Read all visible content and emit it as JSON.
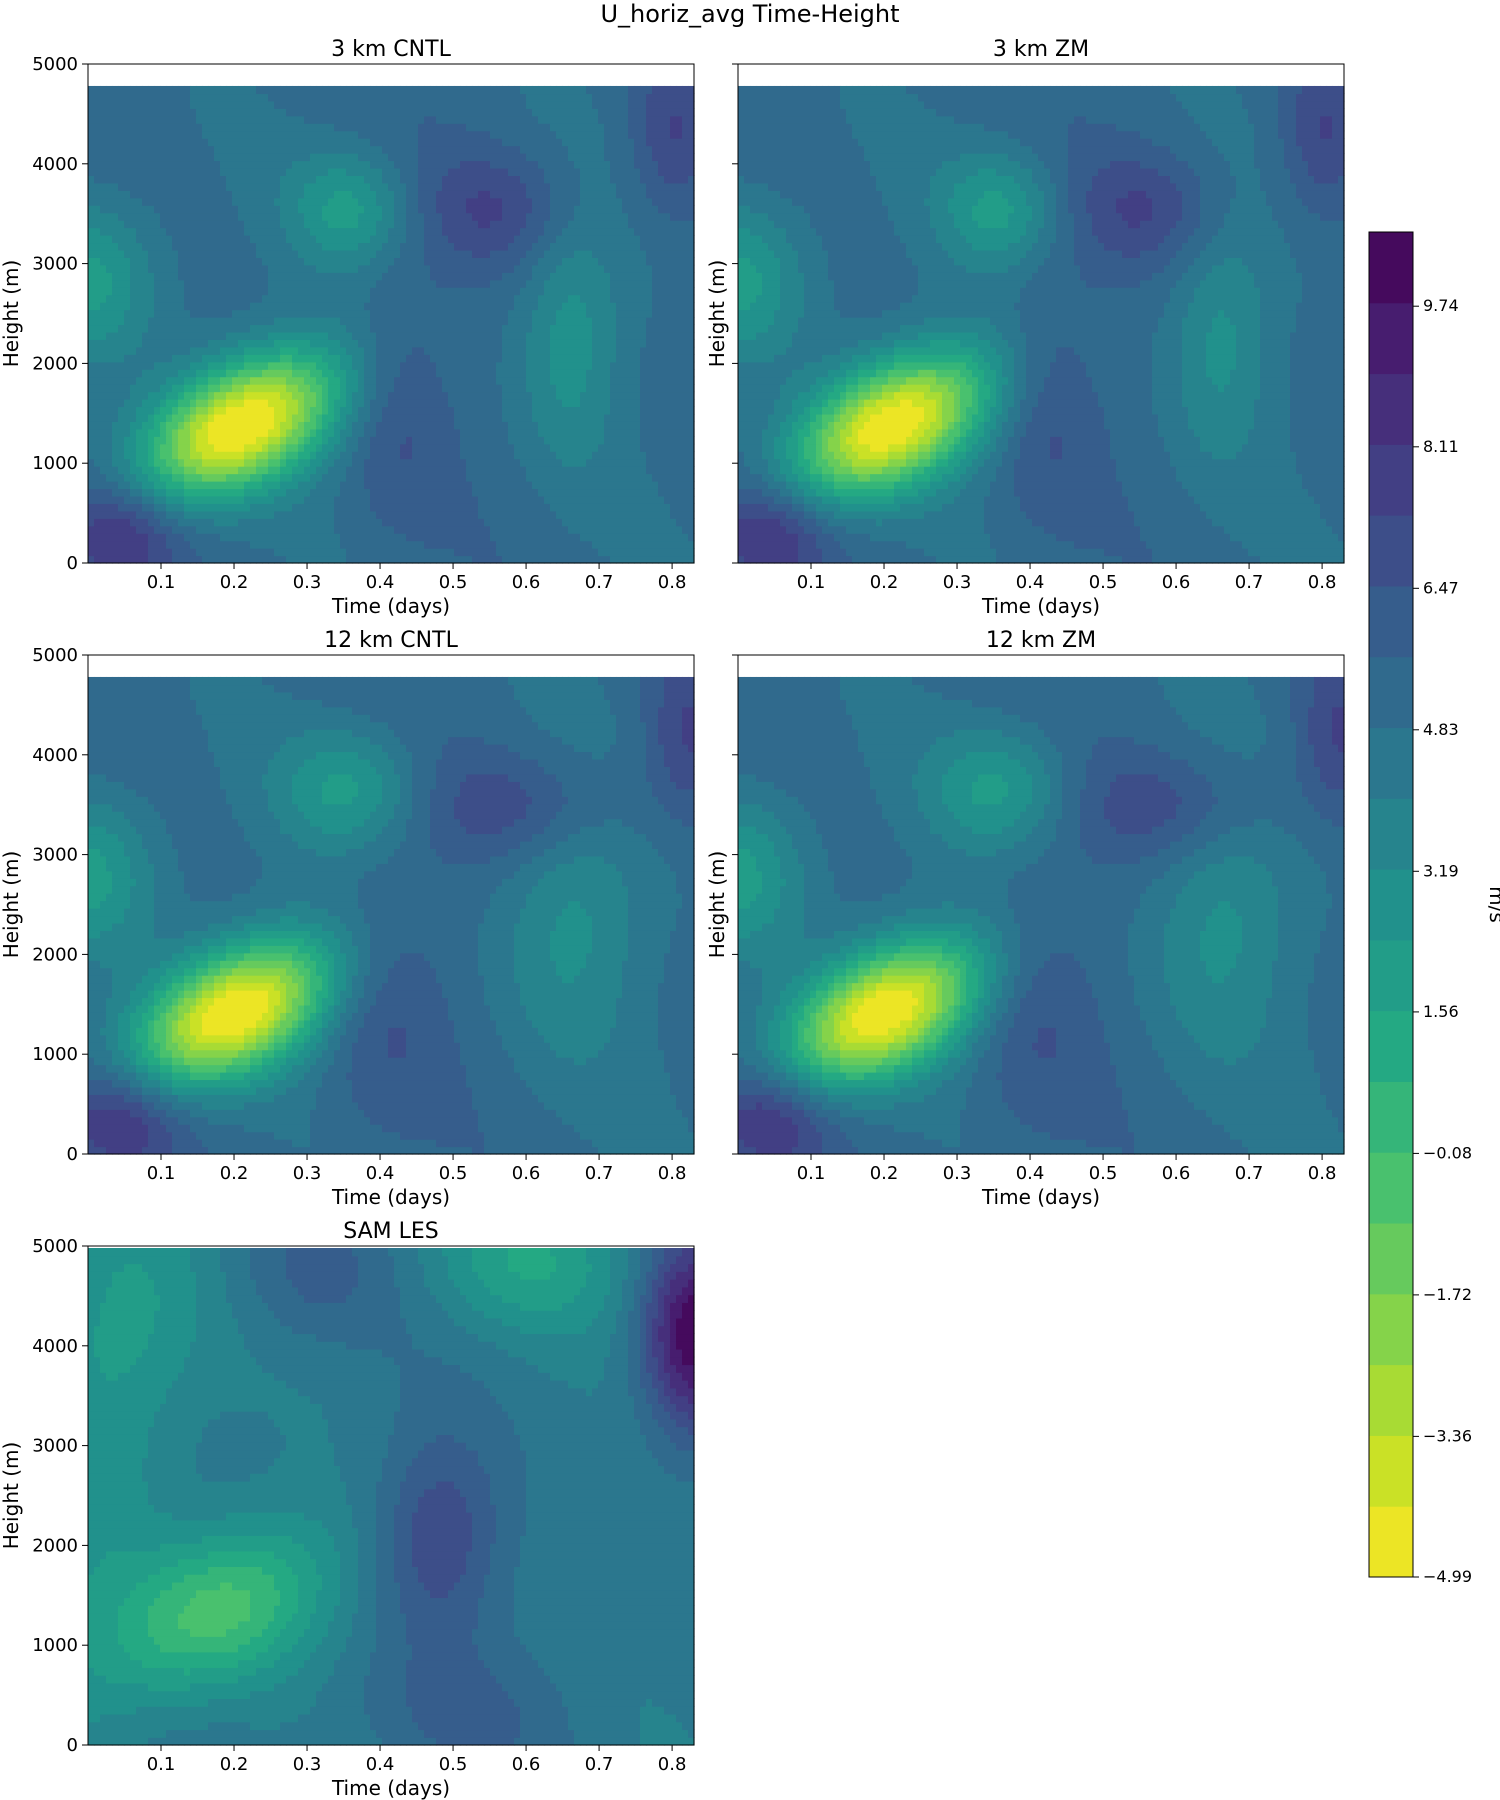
{
  "figure": {
    "title": "U_horiz_avg Time-Height"
  },
  "colormap": {
    "name": "viridis_r",
    "stops": [
      "#440154",
      "#482576",
      "#414487",
      "#35608d",
      "#2a788e",
      "#21918c",
      "#22a884",
      "#43bf71",
      "#7ad151",
      "#bddf26",
      "#fde725"
    ]
  },
  "chart_data": [
    {
      "type": "heatmap",
      "title": "3 km CNTL",
      "xlabel": "Time (days)",
      "ylabel": "Height (m)",
      "xticks": [
        "0.1",
        "0.2",
        "0.3",
        "0.4",
        "0.5",
        "0.6",
        "0.7",
        "0.8"
      ],
      "yticks": [
        "0",
        "1000",
        "2000",
        "3000",
        "4000",
        "5000"
      ],
      "xlim": [
        0.0,
        0.83
      ],
      "ylim": [
        0,
        5000
      ],
      "data_top": 4780,
      "field": {
        "background": 5.2,
        "features": [
          {
            "kind": "min",
            "t": 0.21,
            "z": 1380,
            "st": 0.085,
            "sz": 520,
            "amp": -10.4,
            "tilt": 0.45
          },
          {
            "kind": "min",
            "t": 0.36,
            "z": 3550,
            "st": 0.06,
            "sz": 420,
            "amp": -3.0
          },
          {
            "kind": "min",
            "t": 0.0,
            "z": 2850,
            "st": 0.07,
            "sz": 600,
            "amp": -3.2
          },
          {
            "kind": "min",
            "t": 0.66,
            "z": 2250,
            "st": 0.05,
            "sz": 900,
            "amp": -2.4
          },
          {
            "kind": "max",
            "t": 0.04,
            "z": 300,
            "st": 0.06,
            "sz": 380,
            "amp": 3.2
          },
          {
            "kind": "max",
            "t": 0.56,
            "z": 3560,
            "st": 0.08,
            "sz": 420,
            "amp": 2.0
          },
          {
            "kind": "max",
            "t": 0.42,
            "z": 1600,
            "st": 0.05,
            "sz": 900,
            "amp": 1.4
          },
          {
            "kind": "max",
            "t": 0.8,
            "z": 4300,
            "st": 0.04,
            "sz": 600,
            "amp": 2.0
          }
        ]
      }
    },
    {
      "type": "heatmap",
      "title": "3 km ZM",
      "xlabel": "Time (days)",
      "ylabel": "Height (m)",
      "xticks": [
        "0.1",
        "0.2",
        "0.3",
        "0.4",
        "0.5",
        "0.6",
        "0.7",
        "0.8"
      ],
      "yticks": [
        "0",
        "1000",
        "2000",
        "3000",
        "4000",
        "5000"
      ],
      "xlim": [
        0.0,
        0.83
      ],
      "ylim": [
        0,
        5000
      ],
      "data_top": 4780,
      "field": {
        "background": 5.2,
        "features": [
          {
            "kind": "min",
            "t": 0.21,
            "z": 1380,
            "st": 0.085,
            "sz": 520,
            "amp": -10.2,
            "tilt": 0.45
          },
          {
            "kind": "min",
            "t": 0.36,
            "z": 3550,
            "st": 0.06,
            "sz": 420,
            "amp": -3.0
          },
          {
            "kind": "min",
            "t": 0.0,
            "z": 2850,
            "st": 0.07,
            "sz": 600,
            "amp": -3.2
          },
          {
            "kind": "min",
            "t": 0.66,
            "z": 2250,
            "st": 0.05,
            "sz": 900,
            "amp": -2.2
          },
          {
            "kind": "max",
            "t": 0.04,
            "z": 300,
            "st": 0.06,
            "sz": 380,
            "amp": 3.2
          },
          {
            "kind": "max",
            "t": 0.56,
            "z": 3560,
            "st": 0.08,
            "sz": 420,
            "amp": 2.0
          },
          {
            "kind": "max",
            "t": 0.42,
            "z": 1600,
            "st": 0.05,
            "sz": 900,
            "amp": 1.4
          },
          {
            "kind": "max",
            "t": 0.8,
            "z": 4300,
            "st": 0.04,
            "sz": 600,
            "amp": 2.0
          }
        ]
      }
    },
    {
      "type": "heatmap",
      "title": "12 km CNTL",
      "xlabel": "Time (days)",
      "ylabel": "Height (m)",
      "xticks": [
        "0.1",
        "0.2",
        "0.3",
        "0.4",
        "0.5",
        "0.6",
        "0.7",
        "0.8"
      ],
      "yticks": [
        "0",
        "1000",
        "2000",
        "3000",
        "4000",
        "5000"
      ],
      "xlim": [
        0.0,
        0.83
      ],
      "ylim": [
        0,
        5000
      ],
      "data_top": 4780,
      "field": {
        "background": 5.2,
        "features": [
          {
            "kind": "min",
            "t": 0.2,
            "z": 1420,
            "st": 0.085,
            "sz": 520,
            "amp": -10.4,
            "tilt": 0.45
          },
          {
            "kind": "min",
            "t": 0.36,
            "z": 3650,
            "st": 0.07,
            "sz": 450,
            "amp": -3.0
          },
          {
            "kind": "min",
            "t": 0.0,
            "z": 2800,
            "st": 0.07,
            "sz": 600,
            "amp": -3.2
          },
          {
            "kind": "min",
            "t": 0.66,
            "z": 2300,
            "st": 0.07,
            "sz": 1000,
            "amp": -2.2
          },
          {
            "kind": "max",
            "t": 0.04,
            "z": 350,
            "st": 0.06,
            "sz": 380,
            "amp": 3.2
          },
          {
            "kind": "max",
            "t": 0.6,
            "z": 3500,
            "st": 0.1,
            "sz": 400,
            "amp": 2.0
          },
          {
            "kind": "max",
            "t": 0.4,
            "z": 1500,
            "st": 0.06,
            "sz": 1000,
            "amp": 1.4
          },
          {
            "kind": "max",
            "t": 0.82,
            "z": 4200,
            "st": 0.04,
            "sz": 600,
            "amp": 2.0
          }
        ]
      }
    },
    {
      "type": "heatmap",
      "title": "12 km ZM",
      "xlabel": "Time (days)",
      "ylabel": "Height (m)",
      "xticks": [
        "0.1",
        "0.2",
        "0.3",
        "0.4",
        "0.5",
        "0.6",
        "0.7",
        "0.8"
      ],
      "yticks": [
        "0",
        "1000",
        "2000",
        "3000",
        "4000",
        "5000"
      ],
      "xlim": [
        0.0,
        0.83
      ],
      "ylim": [
        0,
        5000
      ],
      "data_top": 4780,
      "field": {
        "background": 5.2,
        "features": [
          {
            "kind": "min",
            "t": 0.2,
            "z": 1420,
            "st": 0.085,
            "sz": 520,
            "amp": -10.2,
            "tilt": 0.45
          },
          {
            "kind": "min",
            "t": 0.36,
            "z": 3650,
            "st": 0.07,
            "sz": 450,
            "amp": -3.0
          },
          {
            "kind": "min",
            "t": 0.0,
            "z": 2800,
            "st": 0.07,
            "sz": 600,
            "amp": -3.2
          },
          {
            "kind": "min",
            "t": 0.66,
            "z": 2300,
            "st": 0.07,
            "sz": 1000,
            "amp": -2.2
          },
          {
            "kind": "max",
            "t": 0.04,
            "z": 350,
            "st": 0.06,
            "sz": 380,
            "amp": 3.2
          },
          {
            "kind": "max",
            "t": 0.6,
            "z": 3500,
            "st": 0.1,
            "sz": 400,
            "amp": 2.0
          },
          {
            "kind": "max",
            "t": 0.4,
            "z": 1500,
            "st": 0.06,
            "sz": 1000,
            "amp": 1.4
          },
          {
            "kind": "max",
            "t": 0.82,
            "z": 4200,
            "st": 0.04,
            "sz": 600,
            "amp": 2.0
          }
        ]
      }
    },
    {
      "type": "heatmap",
      "title": "SAM LES",
      "xlabel": "Time (days)",
      "ylabel": "Height (m)",
      "xticks": [
        "0.1",
        "0.2",
        "0.3",
        "0.4",
        "0.5",
        "0.6",
        "0.7",
        "0.8"
      ],
      "yticks": [
        "0",
        "1000",
        "2000",
        "3000",
        "4000",
        "5000"
      ],
      "xlim": [
        0.0,
        0.83
      ],
      "ylim": [
        0,
        5000
      ],
      "data_top": 4980,
      "field": {
        "background": 4.4,
        "features": [
          {
            "kind": "min",
            "t": 0.18,
            "z": 1350,
            "st": 0.1,
            "sz": 600,
            "amp": -4.6,
            "tilt": 0.35
          },
          {
            "kind": "min",
            "t": 0.05,
            "z": 4300,
            "st": 0.08,
            "sz": 900,
            "amp": -2.2
          },
          {
            "kind": "min",
            "t": 0.0,
            "z": 2000,
            "st": 0.08,
            "sz": 1500,
            "amp": -1.6
          },
          {
            "kind": "min",
            "t": 0.6,
            "z": 4850,
            "st": 0.1,
            "sz": 500,
            "amp": -2.6
          },
          {
            "kind": "max",
            "t": 0.48,
            "z": 2100,
            "st": 0.06,
            "sz": 700,
            "amp": 2.8
          },
          {
            "kind": "max",
            "t": 0.83,
            "z": 4100,
            "st": 0.05,
            "sz": 700,
            "amp": 6.0
          },
          {
            "kind": "max",
            "t": 0.3,
            "z": 4700,
            "st": 0.08,
            "sz": 500,
            "amp": 1.6
          },
          {
            "kind": "max",
            "t": 0.5,
            "z": 300,
            "st": 0.12,
            "sz": 500,
            "amp": 1.2
          }
        ]
      }
    }
  ],
  "colorbar": {
    "label": "m/s",
    "vmin": -4.99,
    "vmax": 10.6,
    "levels": 19,
    "ticks": [
      "9.74",
      "8.11",
      "6.47",
      "4.83",
      "3.19",
      "1.56",
      "−0.08",
      "−1.72",
      "−3.36",
      "−4.99"
    ],
    "tick_values": [
      9.74,
      8.11,
      6.47,
      4.83,
      3.19,
      1.56,
      -0.08,
      -1.72,
      -3.36,
      -4.99
    ]
  }
}
